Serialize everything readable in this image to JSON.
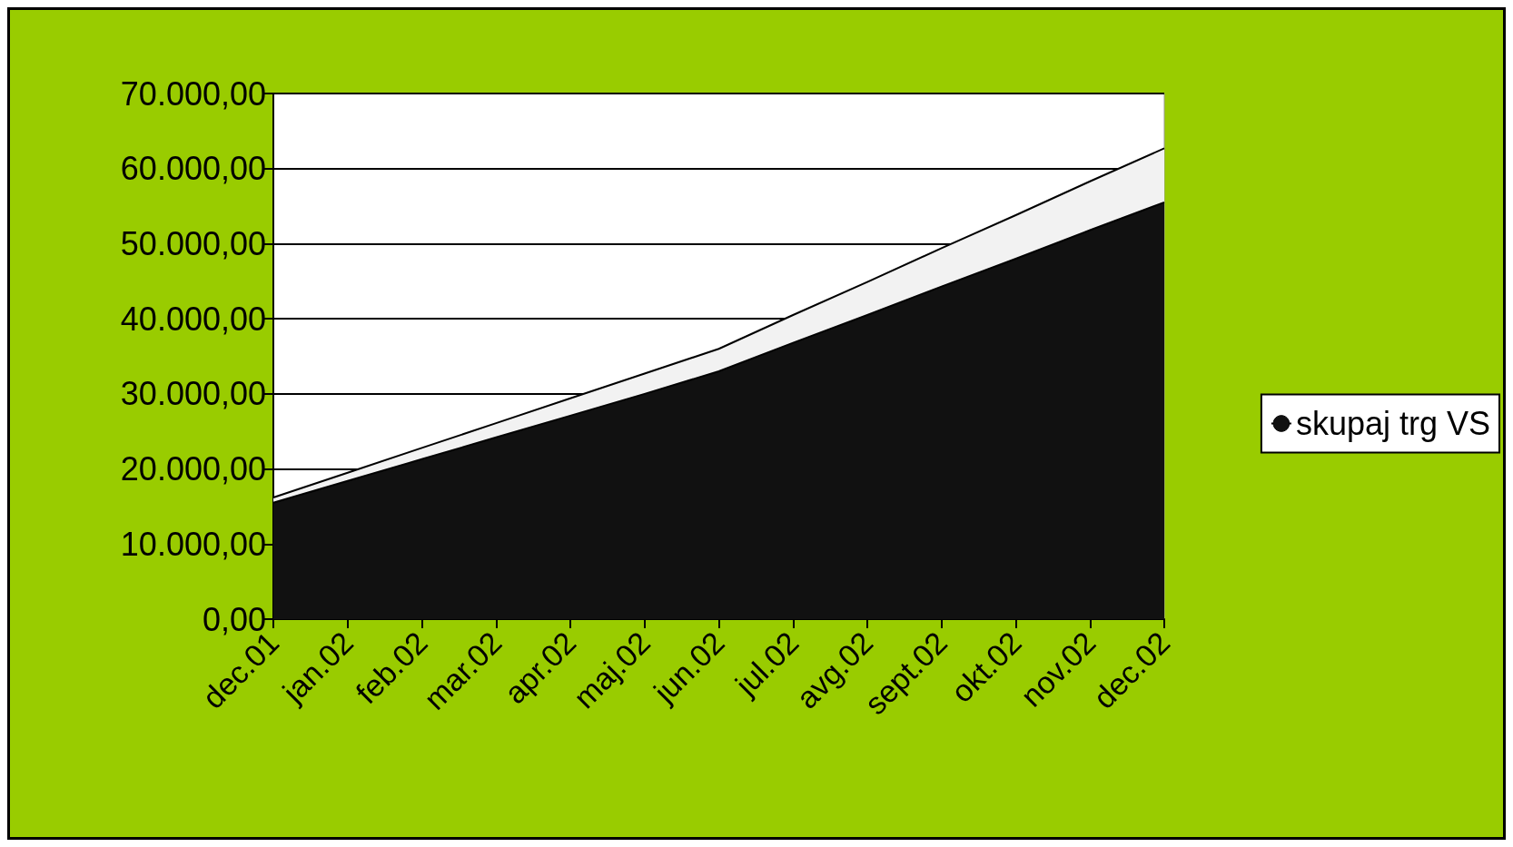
{
  "chart_data": {
    "type": "area",
    "stacked": true,
    "categories": [
      "dec.01",
      "jan.02",
      "feb.02",
      "mar.02",
      "apr.02",
      "maj.02",
      "jun.02",
      "jul.02",
      "avg.02",
      "sept.02",
      "okt.02",
      "nov.02",
      "dec.02"
    ],
    "series": [
      {
        "name": "skupaj trg VS",
        "color": "#111111",
        "values": [
          15500,
          18400,
          21300,
          24200,
          27100,
          30000,
          33000,
          36800,
          40500,
          44300,
          48000,
          51800,
          55500
        ]
      },
      {
        "color": "#f2f2f2",
        "values": [
          700,
          1100,
          1500,
          1900,
          2300,
          2700,
          3000,
          3700,
          4400,
          5100,
          5800,
          6500,
          7200
        ]
      }
    ],
    "ylim": [
      0,
      70000
    ],
    "yticks": [
      {
        "value": 0,
        "label": "0,00"
      },
      {
        "value": 10000,
        "label": "10.000,00"
      },
      {
        "value": 20000,
        "label": "20.000,00"
      },
      {
        "value": 30000,
        "label": "30.000,00"
      },
      {
        "value": 40000,
        "label": "40.000,00"
      },
      {
        "value": 50000,
        "label": "50.000,00"
      },
      {
        "value": 60000,
        "label": "60.000,00"
      },
      {
        "value": 70000,
        "label": "70.000,00"
      }
    ],
    "grid": "y",
    "legend": "right",
    "marker": "none"
  }
}
